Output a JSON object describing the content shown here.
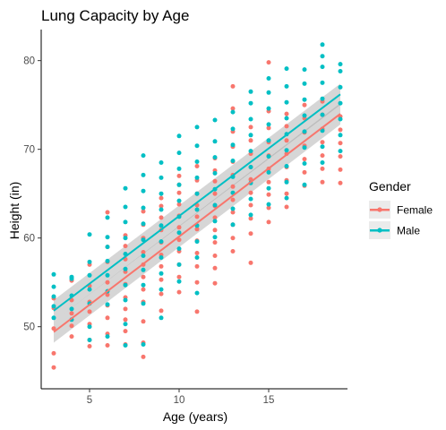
{
  "chart_data": {
    "type": "scatter",
    "title": "Lung Capacity by Age",
    "xlabel": "Age (years)",
    "ylabel": "Height (in)",
    "xlim": [
      2.3,
      19.4
    ],
    "ylim": [
      43.0,
      83.5
    ],
    "xticks": [
      5,
      10,
      15
    ],
    "yticks": [
      50,
      60,
      70,
      80
    ],
    "grid": false,
    "legend": {
      "title": "Gender",
      "position": "right"
    },
    "series": [
      {
        "name": "Female",
        "color": "#F8766D",
        "trend": {
          "x": [
            3,
            19
          ],
          "y": [
            49.4,
            74.0
          ],
          "band": 1.2
        },
        "points": [
          [
            3,
            47.0
          ],
          [
            3,
            45.4
          ],
          [
            3,
            49.8
          ],
          [
            3,
            52.1
          ],
          [
            3,
            53.2
          ],
          [
            4,
            48.9
          ],
          [
            4,
            50.1
          ],
          [
            4,
            51.5
          ],
          [
            4,
            53.0
          ],
          [
            4,
            55.2
          ],
          [
            5,
            47.8
          ],
          [
            5,
            48.5
          ],
          [
            5,
            50.3
          ],
          [
            5,
            51.7
          ],
          [
            5,
            52.8
          ],
          [
            5,
            54.6
          ],
          [
            5,
            57.0
          ],
          [
            6,
            47.9
          ],
          [
            6,
            49.2
          ],
          [
            6,
            51.0
          ],
          [
            6,
            52.4
          ],
          [
            6,
            53.6
          ],
          [
            6,
            55.0
          ],
          [
            6,
            57.3
          ],
          [
            6,
            59.0
          ],
          [
            6,
            62.9
          ],
          [
            7,
            48.0
          ],
          [
            7,
            49.5
          ],
          [
            7,
            50.8
          ],
          [
            7,
            52.0
          ],
          [
            7,
            53.3
          ],
          [
            7,
            54.8
          ],
          [
            7,
            56.2
          ],
          [
            7,
            57.6
          ],
          [
            7,
            59.1
          ],
          [
            7,
            60.3
          ],
          [
            8,
            46.6
          ],
          [
            8,
            48.2
          ],
          [
            8,
            50.6
          ],
          [
            8,
            52.8
          ],
          [
            8,
            54.2
          ],
          [
            8,
            55.6
          ],
          [
            8,
            57.0
          ],
          [
            8,
            58.4
          ],
          [
            8,
            60.0
          ],
          [
            8,
            61.5
          ],
          [
            8,
            63.0
          ],
          [
            9,
            51.8
          ],
          [
            9,
            53.7
          ],
          [
            9,
            55.3
          ],
          [
            9,
            56.8
          ],
          [
            9,
            58.1
          ],
          [
            9,
            59.5
          ],
          [
            9,
            60.9
          ],
          [
            9,
            62.3
          ],
          [
            9,
            63.6
          ],
          [
            9,
            64.5
          ],
          [
            10,
            53.9
          ],
          [
            10,
            55.6
          ],
          [
            10,
            57.0
          ],
          [
            10,
            58.5
          ],
          [
            10,
            59.8
          ],
          [
            10,
            61.2
          ],
          [
            10,
            62.5
          ],
          [
            10,
            63.8
          ],
          [
            10,
            65.1
          ],
          [
            10,
            66.0
          ],
          [
            10,
            67.0
          ],
          [
            11,
            51.7
          ],
          [
            11,
            55.0
          ],
          [
            11,
            56.8
          ],
          [
            11,
            58.3
          ],
          [
            11,
            59.7
          ],
          [
            11,
            61.0
          ],
          [
            11,
            62.4
          ],
          [
            11,
            63.7
          ],
          [
            11,
            65.0
          ],
          [
            11,
            66.5
          ],
          [
            11,
            68.1
          ],
          [
            12,
            54.9
          ],
          [
            12,
            56.6
          ],
          [
            12,
            58.0
          ],
          [
            12,
            59.5
          ],
          [
            12,
            60.9
          ],
          [
            12,
            62.3
          ],
          [
            12,
            63.6
          ],
          [
            12,
            65.0
          ],
          [
            12,
            66.4
          ],
          [
            12,
            67.6
          ],
          [
            12,
            69.0
          ],
          [
            13,
            58.5
          ],
          [
            13,
            60.0
          ],
          [
            13,
            61.5
          ],
          [
            13,
            62.9
          ],
          [
            13,
            64.3
          ],
          [
            13,
            65.8
          ],
          [
            13,
            67.1
          ],
          [
            13,
            68.6
          ],
          [
            13,
            70.3
          ],
          [
            13,
            72.0
          ],
          [
            13,
            74.6
          ],
          [
            13,
            77.1
          ],
          [
            14,
            57.2
          ],
          [
            14,
            60.5
          ],
          [
            14,
            62.2
          ],
          [
            14,
            63.7
          ],
          [
            14,
            65.1
          ],
          [
            14,
            66.6
          ],
          [
            14,
            68.0
          ],
          [
            14,
            69.5
          ],
          [
            14,
            71.0
          ],
          [
            14,
            72.5
          ],
          [
            15,
            61.8
          ],
          [
            15,
            63.4
          ],
          [
            15,
            64.9
          ],
          [
            15,
            66.3
          ],
          [
            15,
            67.8
          ],
          [
            15,
            69.3
          ],
          [
            15,
            70.8
          ],
          [
            15,
            72.4
          ],
          [
            15,
            74.3
          ],
          [
            15,
            79.8
          ],
          [
            16,
            63.5
          ],
          [
            16,
            65.0
          ],
          [
            16,
            66.5
          ],
          [
            16,
            68.0
          ],
          [
            16,
            69.5
          ],
          [
            16,
            71.0
          ],
          [
            16,
            72.6
          ],
          [
            16,
            74.0
          ],
          [
            17,
            65.9
          ],
          [
            17,
            67.4
          ],
          [
            17,
            68.9
          ],
          [
            17,
            70.4
          ],
          [
            17,
            71.9
          ],
          [
            17,
            73.5
          ],
          [
            17,
            75.0
          ],
          [
            18,
            66.3
          ],
          [
            18,
            67.8
          ],
          [
            18,
            69.3
          ],
          [
            18,
            70.8
          ],
          [
            18,
            72.3
          ],
          [
            18,
            73.9
          ],
          [
            18,
            75.4
          ],
          [
            19,
            66.2
          ],
          [
            19,
            67.7
          ],
          [
            19,
            69.2
          ],
          [
            19,
            70.7
          ],
          [
            19,
            72.2
          ],
          [
            19,
            73.7
          ]
        ]
      },
      {
        "name": "Male",
        "color": "#00BFC4",
        "trend": {
          "x": [
            3,
            19
          ],
          "y": [
            51.8,
            76.2
          ],
          "band": 1.2
        },
        "points": [
          [
            3,
            51.0
          ],
          [
            3,
            52.3
          ],
          [
            3,
            53.4
          ],
          [
            3,
            54.5
          ],
          [
            3,
            55.9
          ],
          [
            4,
            50.8
          ],
          [
            4,
            52.0
          ],
          [
            4,
            53.5
          ],
          [
            4,
            55.4
          ],
          [
            4,
            55.6
          ],
          [
            5,
            48.5
          ],
          [
            5,
            50.0
          ],
          [
            5,
            52.6
          ],
          [
            5,
            54.2
          ],
          [
            5,
            55.8
          ],
          [
            5,
            57.3
          ],
          [
            5,
            60.4
          ],
          [
            6,
            48.9
          ],
          [
            6,
            52.5
          ],
          [
            6,
            54.0
          ],
          [
            6,
            55.8
          ],
          [
            6,
            57.4
          ],
          [
            6,
            59.0
          ],
          [
            6,
            60.1
          ],
          [
            6,
            62.3
          ],
          [
            7,
            47.9
          ],
          [
            7,
            50.3
          ],
          [
            7,
            53.0
          ],
          [
            7,
            54.7
          ],
          [
            7,
            56.5
          ],
          [
            7,
            58.2
          ],
          [
            7,
            60.0
          ],
          [
            7,
            61.8
          ],
          [
            7,
            63.5
          ],
          [
            7,
            65.6
          ],
          [
            8,
            48.0
          ],
          [
            8,
            52.6
          ],
          [
            8,
            54.7
          ],
          [
            8,
            56.4
          ],
          [
            8,
            58.0
          ],
          [
            8,
            59.8
          ],
          [
            8,
            61.6
          ],
          [
            8,
            63.4
          ],
          [
            8,
            65.3
          ],
          [
            8,
            67.1
          ],
          [
            8,
            69.3
          ],
          [
            9,
            51.0
          ],
          [
            9,
            54.2
          ],
          [
            9,
            56.0
          ],
          [
            9,
            57.8
          ],
          [
            9,
            59.6
          ],
          [
            9,
            61.4
          ],
          [
            9,
            63.2
          ],
          [
            9,
            65.0
          ],
          [
            9,
            66.8
          ],
          [
            9,
            68.5
          ],
          [
            10,
            55.1
          ],
          [
            10,
            57.0
          ],
          [
            10,
            58.8
          ],
          [
            10,
            60.6
          ],
          [
            10,
            62.4
          ],
          [
            10,
            64.2
          ],
          [
            10,
            66.0
          ],
          [
            10,
            67.8
          ],
          [
            10,
            69.6
          ],
          [
            10,
            71.5
          ],
          [
            11,
            53.8
          ],
          [
            11,
            57.8
          ],
          [
            11,
            59.6
          ],
          [
            11,
            61.4
          ],
          [
            11,
            63.2
          ],
          [
            11,
            65.0
          ],
          [
            11,
            66.8
          ],
          [
            11,
            68.6
          ],
          [
            11,
            70.4
          ],
          [
            11,
            72.5
          ],
          [
            12,
            60.1
          ],
          [
            12,
            61.9
          ],
          [
            12,
            63.7
          ],
          [
            12,
            65.5
          ],
          [
            12,
            67.3
          ],
          [
            12,
            69.1
          ],
          [
            12,
            70.9
          ],
          [
            12,
            73.3
          ],
          [
            13,
            61.5
          ],
          [
            13,
            63.3
          ],
          [
            13,
            65.1
          ],
          [
            13,
            66.9
          ],
          [
            13,
            68.7
          ],
          [
            13,
            70.5
          ],
          [
            13,
            72.3
          ],
          [
            13,
            74.2
          ],
          [
            14,
            62.6
          ],
          [
            14,
            64.4
          ],
          [
            14,
            66.2
          ],
          [
            14,
            68.0
          ],
          [
            14,
            69.8
          ],
          [
            14,
            71.6
          ],
          [
            14,
            73.4
          ],
          [
            14,
            75.2
          ],
          [
            14,
            76.5
          ],
          [
            15,
            63.8
          ],
          [
            15,
            65.6
          ],
          [
            15,
            67.4
          ],
          [
            15,
            69.2
          ],
          [
            15,
            71.0
          ],
          [
            15,
            72.8
          ],
          [
            15,
            74.6
          ],
          [
            15,
            76.4
          ],
          [
            15,
            78.0
          ],
          [
            16,
            64.5
          ],
          [
            16,
            66.3
          ],
          [
            16,
            68.1
          ],
          [
            16,
            69.9
          ],
          [
            16,
            71.7
          ],
          [
            16,
            73.5
          ],
          [
            16,
            75.3
          ],
          [
            16,
            77.1
          ],
          [
            16,
            79.1
          ],
          [
            17,
            66.0
          ],
          [
            17,
            68.4
          ],
          [
            17,
            70.2
          ],
          [
            17,
            72.0
          ],
          [
            17,
            73.8
          ],
          [
            17,
            75.6
          ],
          [
            17,
            77.4
          ],
          [
            17,
            79.0
          ],
          [
            18,
            68.5
          ],
          [
            18,
            70.3
          ],
          [
            18,
            72.1
          ],
          [
            18,
            73.9
          ],
          [
            18,
            75.7
          ],
          [
            18,
            77.5
          ],
          [
            18,
            79.3
          ],
          [
            18,
            80.5
          ],
          [
            18,
            81.8
          ],
          [
            19,
            69.8
          ],
          [
            19,
            71.6
          ],
          [
            19,
            73.4
          ],
          [
            19,
            75.2
          ],
          [
            19,
            77.0
          ],
          [
            19,
            78.8
          ],
          [
            19,
            79.6
          ]
        ]
      }
    ]
  }
}
